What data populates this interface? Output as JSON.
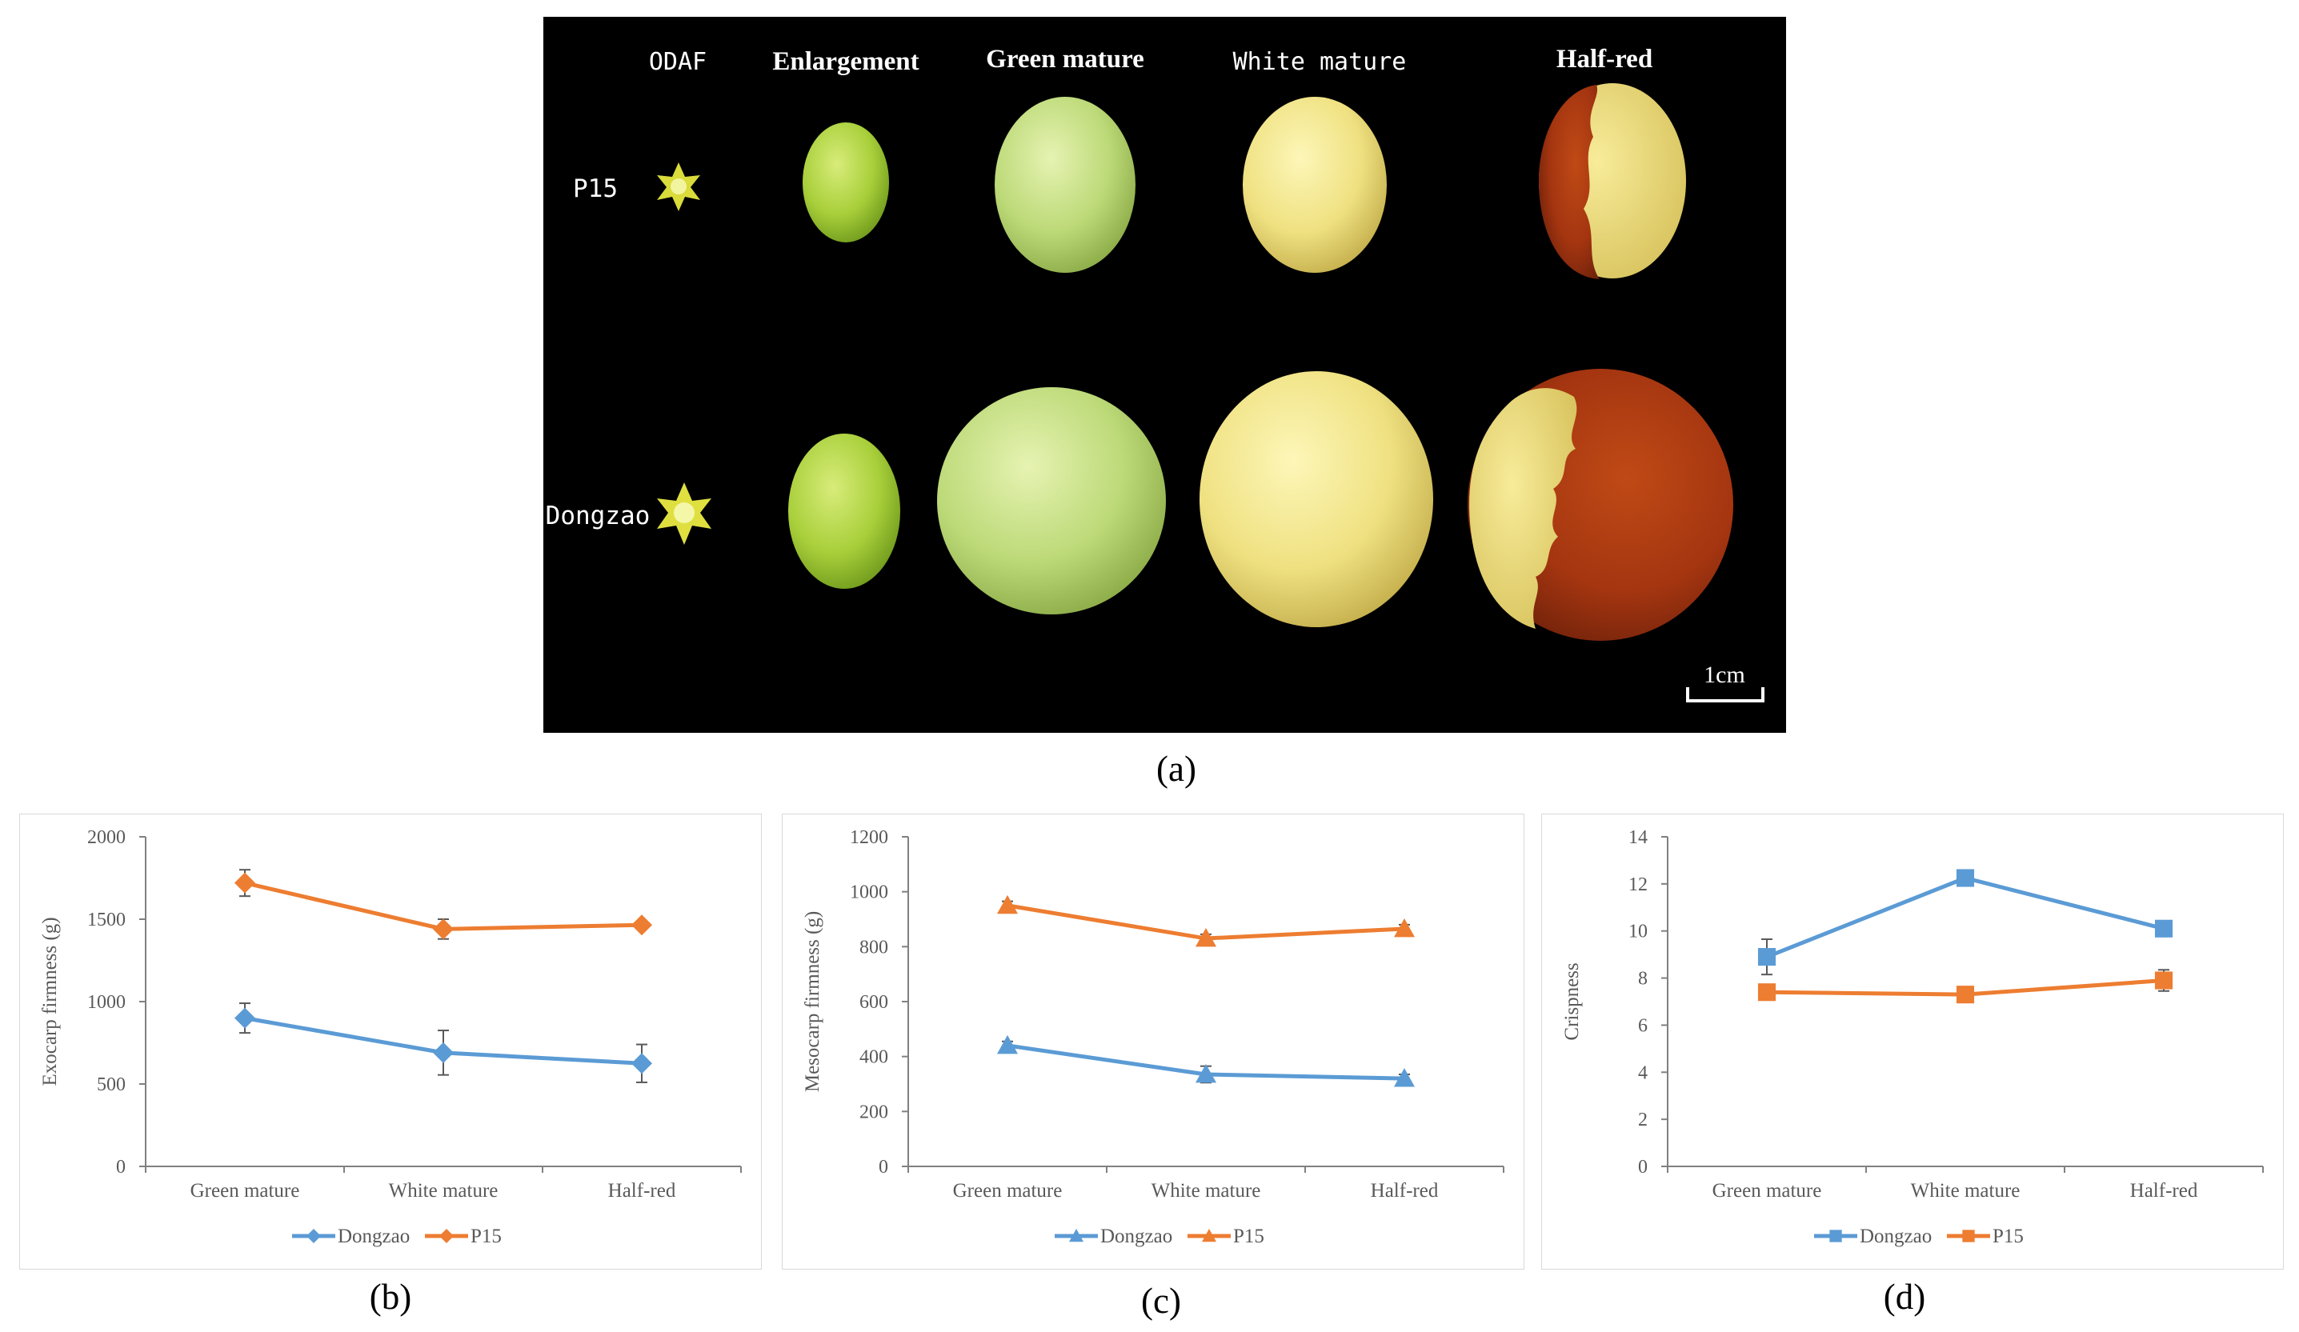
{
  "figure": {
    "panel_a": {
      "label": "(a)",
      "stages": [
        "ODAF",
        "Enlargement",
        "Green mature",
        "White mature",
        "Half-red"
      ],
      "rows": [
        "P15",
        "Dongzao"
      ],
      "scale_bar": "1cm"
    },
    "colors": {
      "dongzao": "#5b9bd5",
      "p15": "#ed7d31",
      "background_photo": "#000000"
    }
  },
  "chart_data": [
    {
      "panel": "(b)",
      "type": "line",
      "categories": [
        "Green mature",
        "White mature",
        "Half-red"
      ],
      "ylabel": "Exocarp firmness (g)",
      "ylim": [
        0,
        2000
      ],
      "yticks": [
        0,
        500,
        1000,
        1500,
        2000
      ],
      "marker": "diamond",
      "series": [
        {
          "name": "Dongzao",
          "values": [
            900,
            690,
            625
          ],
          "errors": [
            90,
            135,
            115
          ]
        },
        {
          "name": "P15",
          "values": [
            1720,
            1440,
            1465
          ],
          "errors": [
            80,
            60,
            20
          ]
        }
      ],
      "legend": "bottom"
    },
    {
      "panel": "(c)",
      "type": "line",
      "categories": [
        "Green mature",
        "White mature",
        "Half-red"
      ],
      "ylabel": "Mesocarp firmness (g)",
      "ylim": [
        0,
        1200
      ],
      "yticks": [
        0,
        200,
        400,
        600,
        800,
        1000,
        1200
      ],
      "marker": "triangle",
      "series": [
        {
          "name": "Dongzao",
          "values": [
            440,
            335,
            320
          ],
          "errors": [
            15,
            30,
            15
          ]
        },
        {
          "name": "P15",
          "values": [
            950,
            830,
            865
          ],
          "errors": [
            15,
            15,
            15
          ]
        }
      ],
      "legend": "bottom"
    },
    {
      "panel": "(d)",
      "type": "line",
      "categories": [
        "Green mature",
        "White mature",
        "Half-red"
      ],
      "ylabel": "Crispness",
      "ylim": [
        0,
        14
      ],
      "yticks": [
        0,
        2,
        4,
        6,
        8,
        10,
        12,
        14
      ],
      "marker": "square",
      "series": [
        {
          "name": "Dongzao",
          "values": [
            8.9,
            12.25,
            10.1
          ],
          "errors": [
            0.75,
            0.15,
            0.2
          ]
        },
        {
          "name": "P15",
          "values": [
            7.4,
            7.3,
            7.9
          ],
          "errors": [
            0.15,
            0.1,
            0.45
          ]
        }
      ],
      "legend": "bottom"
    }
  ]
}
